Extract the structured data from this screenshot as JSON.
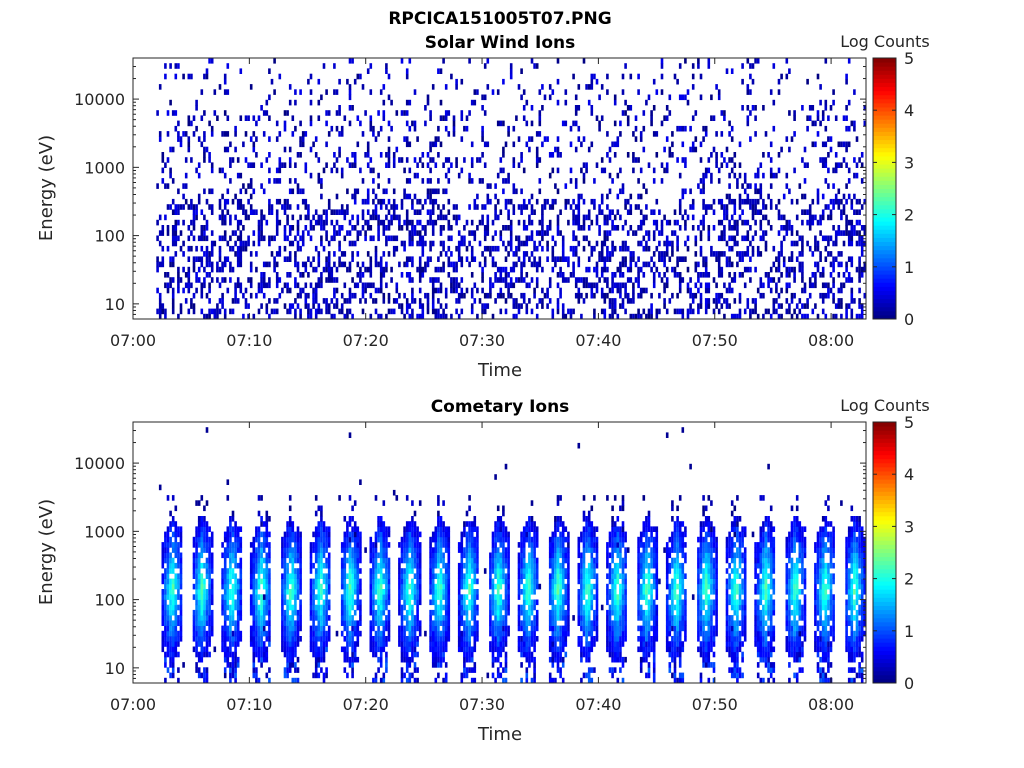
{
  "figure": {
    "title": "RPCICA151005T07.PNG"
  },
  "colorbar": {
    "label": "Log Counts",
    "ticks": [
      0,
      1,
      2,
      3,
      4,
      5
    ],
    "range": [
      0,
      5
    ],
    "colormap": "jet"
  },
  "chart_data": [
    {
      "type": "heatmap",
      "title": "Solar Wind Ions",
      "xlabel": "Time",
      "ylabel": "Energy (eV)",
      "x_ticks": [
        "07:00",
        "07:10",
        "07:20",
        "07:30",
        "07:40",
        "07:50",
        "08:00"
      ],
      "xlim": [
        "07:00",
        "08:03"
      ],
      "y_scale": "log",
      "y_ticks": [
        10,
        100,
        1000,
        10000
      ],
      "ylim": [
        6,
        40000
      ],
      "data_start": "07:02",
      "data_end": "08:03",
      "description_values": {
        "dominant_log_counts": [
          0,
          0.5
        ],
        "pattern": "sparse low counts scattered across all energies"
      }
    },
    {
      "type": "heatmap",
      "title": "Cometary Ions",
      "xlabel": "Time",
      "ylabel": "Energy (eV)",
      "x_ticks": [
        "07:00",
        "07:10",
        "07:20",
        "07:30",
        "07:40",
        "07:50",
        "08:00"
      ],
      "xlim": [
        "07:00",
        "08:03"
      ],
      "y_scale": "log",
      "y_ticks": [
        10,
        100,
        1000,
        10000
      ],
      "ylim": [
        6,
        40000
      ],
      "data_start": "07:02",
      "data_end": "08:03",
      "description_values": {
        "dominant_log_counts": [
          0,
          2
        ],
        "band_energy_range_eV": [
          20,
          500
        ],
        "pattern": "periodic bursts roughly every 2.5 minutes"
      }
    }
  ]
}
